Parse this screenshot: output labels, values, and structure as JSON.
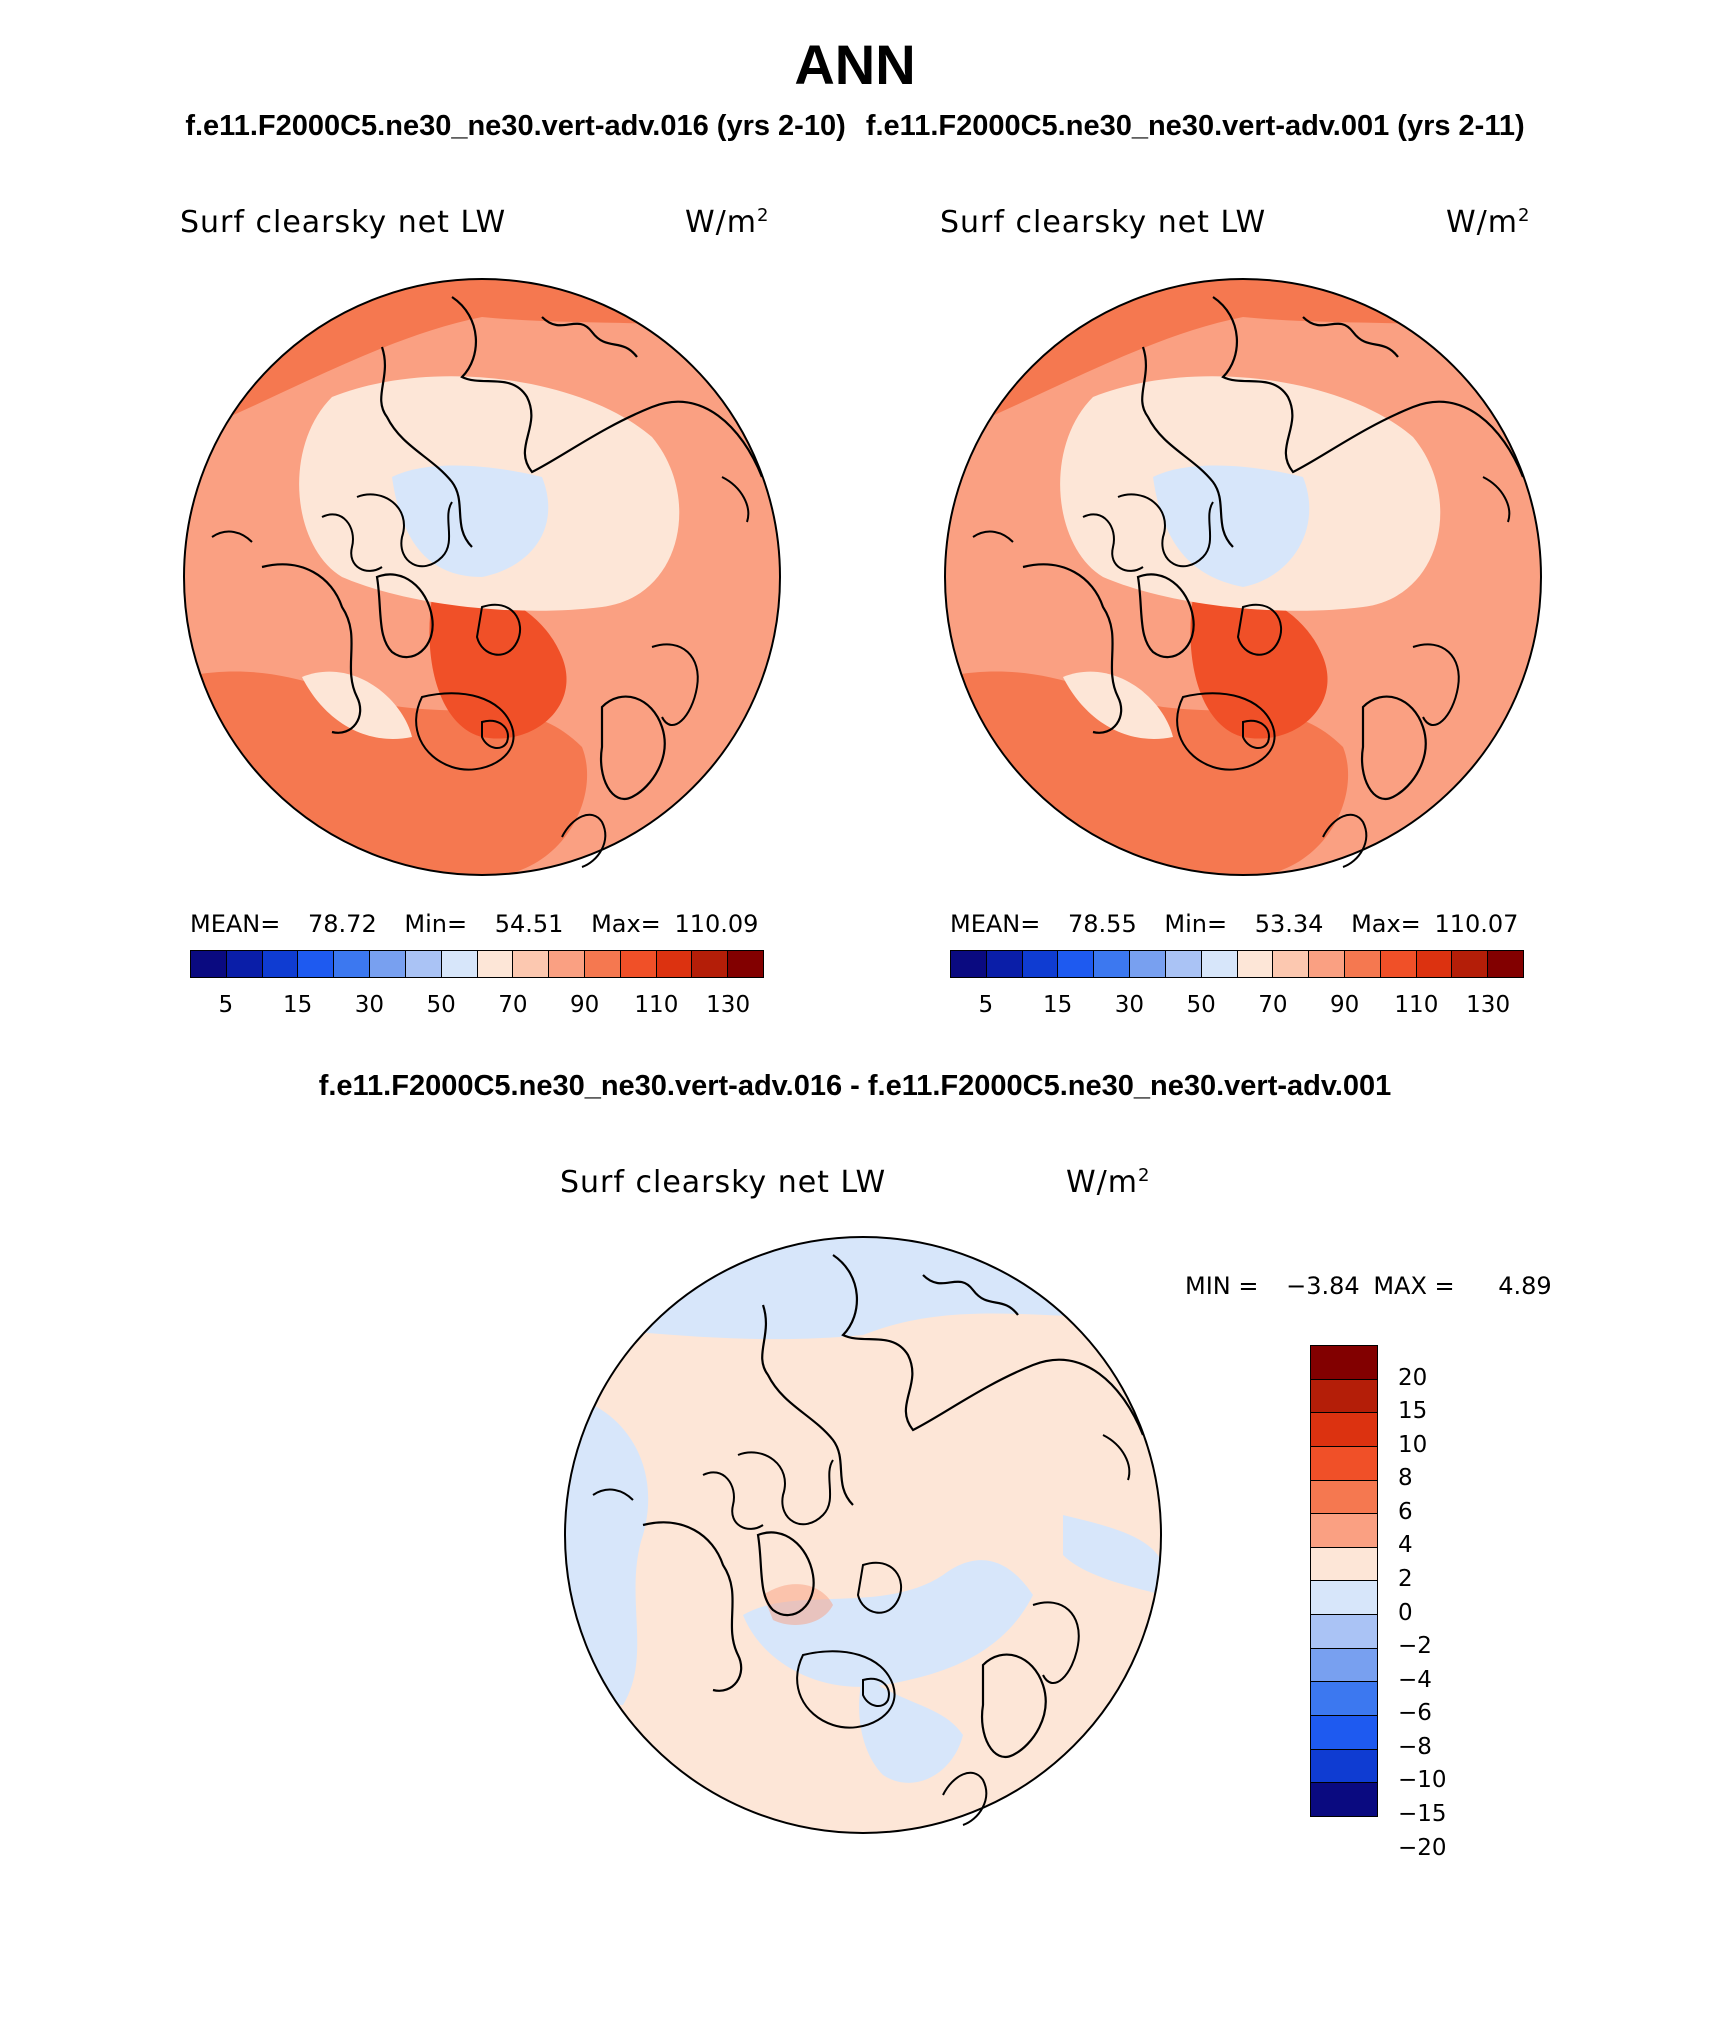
{
  "title": "ANN",
  "panels": {
    "test_title": "f.e11.F2000C5.ne30_ne30.vert-adv.016 (yrs 2-10)",
    "ctrl_title": "f.e11.F2000C5.ne30_ne30.vert-adv.001 (yrs 2-11)",
    "diff_title": "f.e11.F2000C5.ne30_ne30.vert-adv.016 - f.e11.F2000C5.ne30_ne30.vert-adv.001"
  },
  "variable": {
    "name": "Surf clearsky net LW",
    "units_base": "W/m",
    "units_exp": "2"
  },
  "test_stats": {
    "mean_label": "MEAN=",
    "mean": "78.72",
    "min_label": "Min=",
    "min": "54.51",
    "max_label": "Max=",
    "max": "110.09"
  },
  "ctrl_stats": {
    "mean_label": "MEAN=",
    "mean": "78.55",
    "min_label": "Min=",
    "min": "53.34",
    "max_label": "Max=",
    "max": "110.07"
  },
  "diff_stats": {
    "min_label": "MIN =",
    "min": "−3.84",
    "max_label": "MAX =",
    "max": "4.89"
  },
  "abs_colorbar": {
    "colors": [
      "#0a0a80",
      "#0a1ea8",
      "#0f3cd2",
      "#1e5af0",
      "#3c78f0",
      "#78a0f0",
      "#aac3f5",
      "#d7e6fa",
      "#fde6d7",
      "#fcc8b0",
      "#faa082",
      "#f57850",
      "#f05028",
      "#dc3210",
      "#b41e08",
      "#820000"
    ],
    "ticks": [
      "5",
      "15",
      "30",
      "50",
      "70",
      "90",
      "110",
      "130"
    ]
  },
  "diff_colorbar": {
    "colors": [
      "#820000",
      "#b41e08",
      "#dc3210",
      "#f05028",
      "#f57850",
      "#faa082",
      "#fde6d7",
      "#d7e6fa",
      "#aac3f5",
      "#78a0f0",
      "#3c78f0",
      "#1e5af0",
      "#0f3cd2",
      "#0a0a80"
    ],
    "ticks": [
      "20",
      "15",
      "10",
      "8",
      "6",
      "4",
      "2",
      "0",
      "−2",
      "−4",
      "−6",
      "−8",
      "−10",
      "−15",
      "−20"
    ]
  }
}
